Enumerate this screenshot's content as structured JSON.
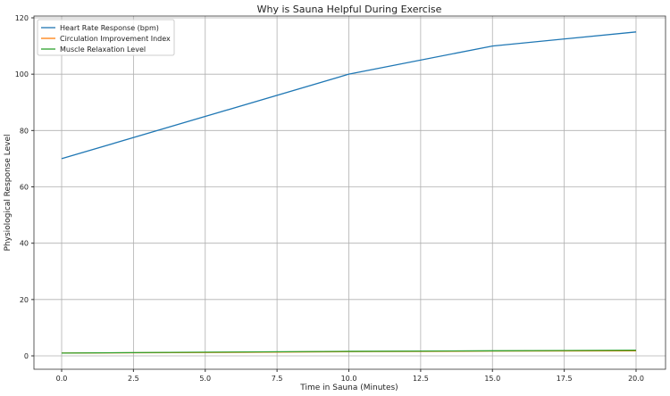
{
  "chart_data": {
    "type": "line",
    "title": "Why is Sauna Helpful During Exercise",
    "xlabel": "Time in Sauna (Minutes)",
    "ylabel": "Physiological Response Level",
    "x": [
      0,
      5,
      10,
      15,
      20
    ],
    "xlim": [
      -1,
      21
    ],
    "ylim": [
      -4.5,
      121
    ],
    "xticks": [
      "0.0",
      "2.5",
      "5.0",
      "7.5",
      "10.0",
      "12.5",
      "15.0",
      "17.5",
      "20.0"
    ],
    "xtick_values": [
      0,
      2.5,
      5,
      7.5,
      10,
      12.5,
      15,
      17.5,
      20
    ],
    "yticks": [
      "0",
      "20",
      "40",
      "60",
      "80",
      "100",
      "120"
    ],
    "ytick_values": [
      0,
      20,
      40,
      60,
      80,
      100,
      120
    ],
    "grid": true,
    "legend_position": "top-left",
    "series": [
      {
        "name": "Heart Rate Response (bpm)",
        "color": "#1f77b4",
        "values": [
          70,
          85,
          100,
          110,
          115
        ]
      },
      {
        "name": "Circulation Improvement Index",
        "color": "#ff7f0e",
        "values": [
          1.0,
          1.2,
          1.5,
          1.7,
          1.8
        ]
      },
      {
        "name": "Muscle Relaxation Level",
        "color": "#2ca02c",
        "values": [
          1.0,
          1.3,
          1.6,
          1.8,
          2.0
        ]
      }
    ]
  }
}
